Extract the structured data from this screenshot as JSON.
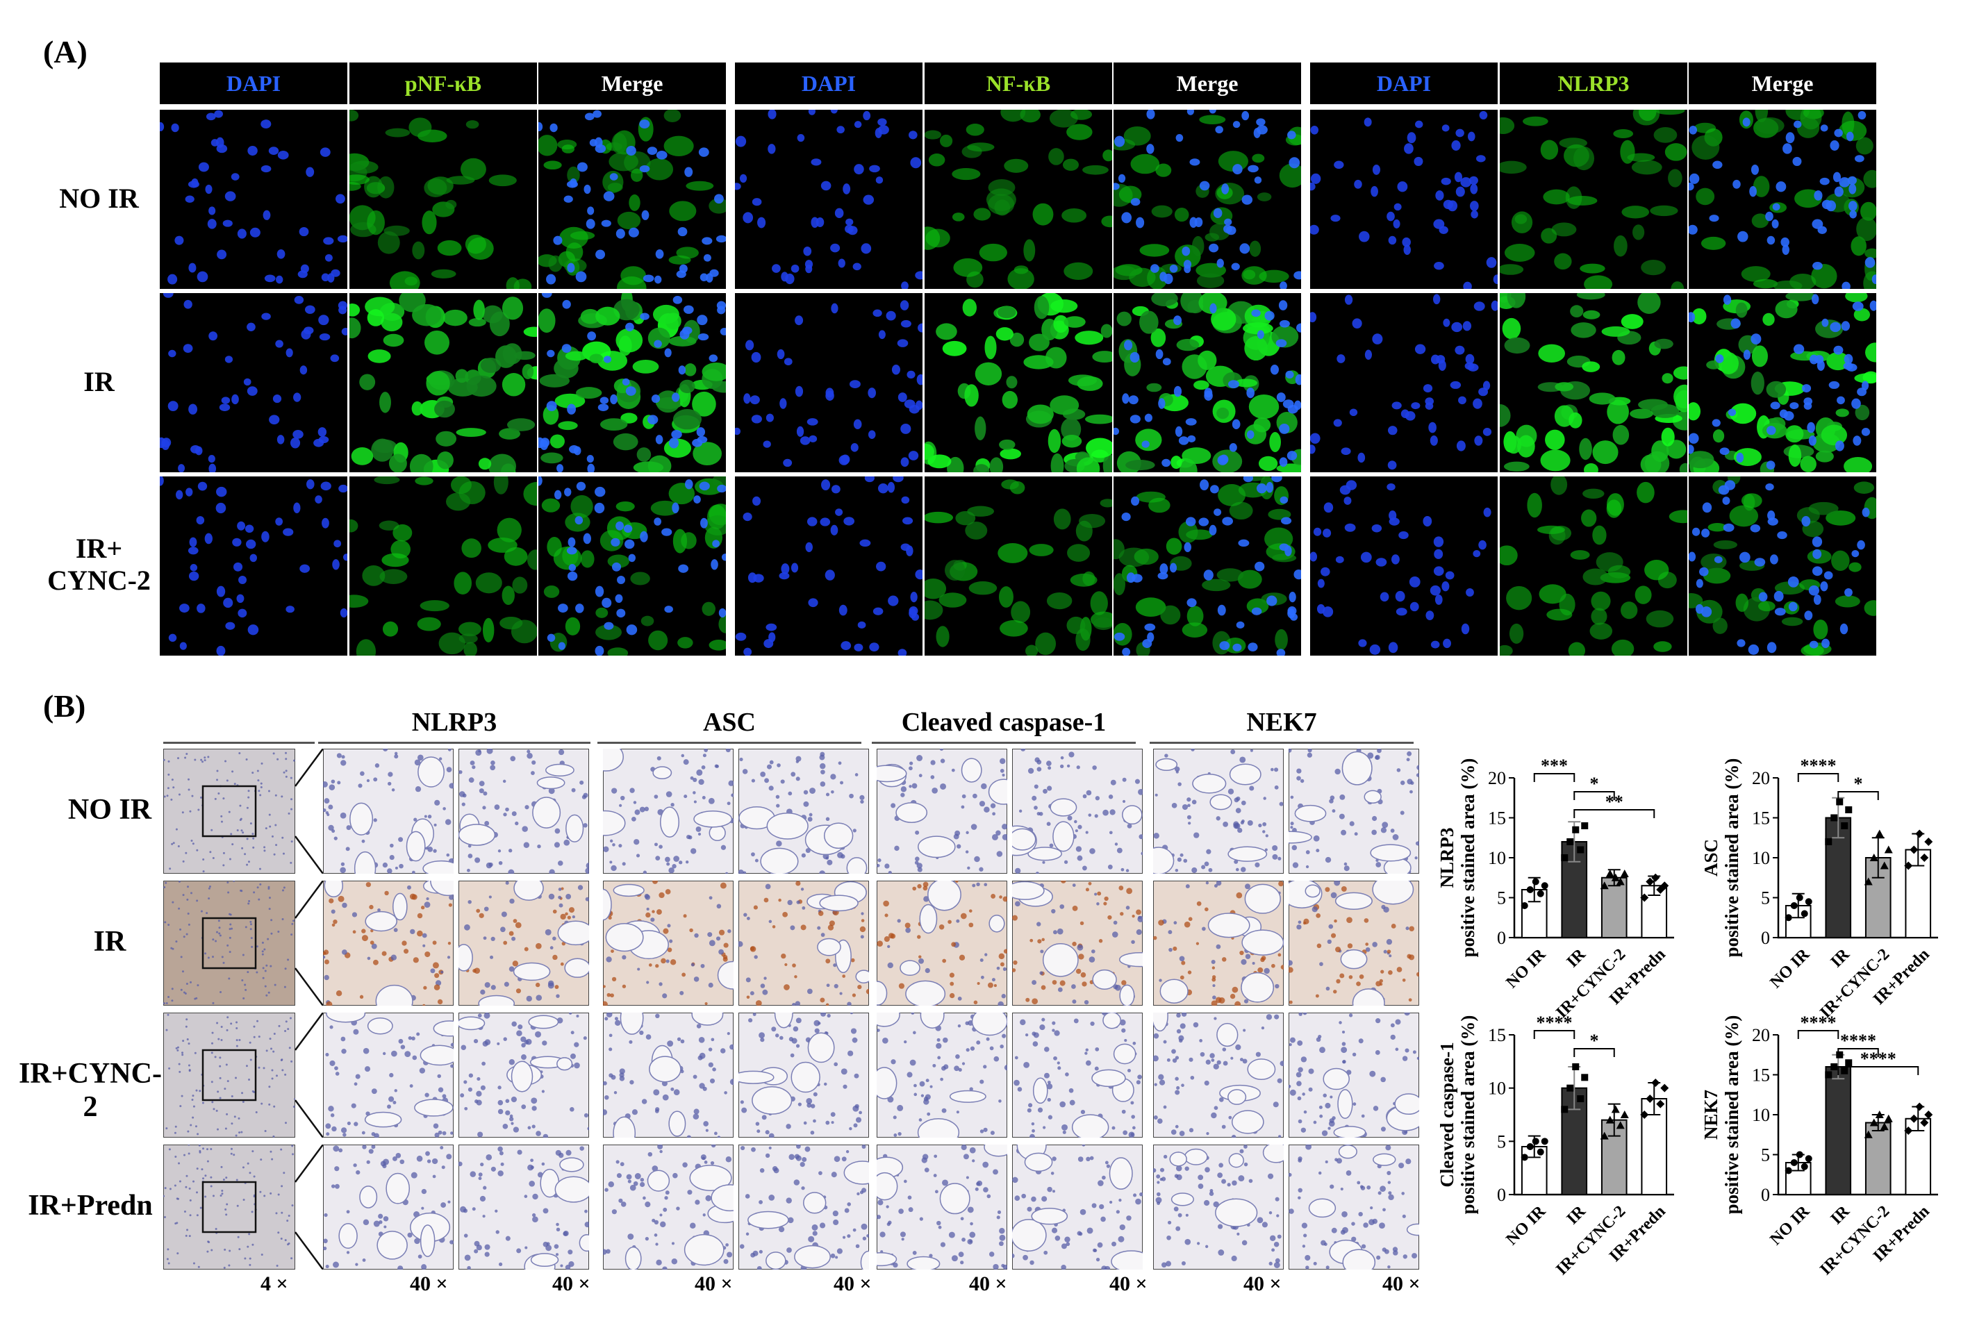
{
  "panelA": {
    "label": "(A)",
    "headers": [
      {
        "text": "DAPI",
        "color": "#2a62ff"
      },
      {
        "text": "pNF-κB",
        "color": "#9be22a"
      },
      {
        "text": "Merge",
        "color": "#ffffff"
      },
      {
        "text": "DAPI",
        "color": "#2a62ff"
      },
      {
        "text": "NF-κB",
        "color": "#9be22a"
      },
      {
        "text": "Merge",
        "color": "#ffffff"
      },
      {
        "text": "DAPI",
        "color": "#2a62ff"
      },
      {
        "text": "NLRP3",
        "color": "#9be22a"
      },
      {
        "text": "Merge",
        "color": "#ffffff"
      }
    ],
    "rows": [
      "NO IR",
      "IR",
      "IR+\nCYNC-2"
    ]
  },
  "panelB": {
    "label": "(B)",
    "stains": [
      "NLRP3",
      "ASC",
      "Cleaved caspase-1",
      "NEK7"
    ],
    "rows": [
      "NO IR",
      "IR",
      "IR+CYNC-2",
      "IR+Predn"
    ],
    "magnifications": [
      "4 ×",
      "40 ×",
      "40 ×",
      "40 ×",
      "40 ×",
      "40 ×",
      "40 ×",
      "40 ×",
      "40 ×"
    ]
  },
  "chart_data": [
    {
      "type": "bar",
      "ylabel_line1": "NLRP3",
      "ylabel_line2": "positive stained area (%)",
      "categories": [
        "NO IR",
        "IR",
        "IR+CYNC-2",
        "IR+Predn"
      ],
      "values": [
        6,
        12,
        7.5,
        6.5
      ],
      "errors": [
        1.5,
        2.5,
        1,
        1.2
      ],
      "points": [
        [
          4,
          6,
          7,
          5.5,
          6.5
        ],
        [
          10,
          12,
          13.5,
          11,
          14
        ],
        [
          6.5,
          8,
          7.5,
          7,
          8
        ],
        [
          5,
          7,
          7.5,
          6,
          6.5
        ]
      ],
      "ylim": [
        0,
        20
      ],
      "yticks": [
        0,
        5,
        10,
        15,
        20
      ],
      "significance": [
        {
          "from": 0,
          "to": 1,
          "label": "***"
        },
        {
          "from": 1,
          "to": 2,
          "label": "*"
        },
        {
          "from": 1,
          "to": 3,
          "label": "**"
        }
      ]
    },
    {
      "type": "bar",
      "ylabel_line1": "ASC",
      "ylabel_line2": "positive stained area (%)",
      "categories": [
        "NO IR",
        "IR",
        "IR+CYNC-2",
        "IR+Predn"
      ],
      "values": [
        4,
        15,
        10,
        11
      ],
      "errors": [
        1.5,
        2.5,
        2.5,
        2
      ],
      "points": [
        [
          2.5,
          4,
          5,
          3,
          4.5
        ],
        [
          12,
          15,
          17,
          14,
          16
        ],
        [
          7,
          10,
          13,
          9,
          11
        ],
        [
          9,
          11,
          13,
          10,
          12
        ]
      ],
      "ylim": [
        0,
        20
      ],
      "yticks": [
        0,
        5,
        10,
        15,
        20
      ],
      "significance": [
        {
          "from": 0,
          "to": 1,
          "label": "****"
        },
        {
          "from": 1,
          "to": 2,
          "label": "*"
        }
      ]
    },
    {
      "type": "bar",
      "ylabel_line1": "Cleaved caspase-1",
      "ylabel_line2": "positive stained area (%)",
      "categories": [
        "NO IR",
        "IR",
        "IR+CYNC-2",
        "IR+Predn"
      ],
      "values": [
        4.5,
        10,
        7,
        9
      ],
      "errors": [
        1,
        2,
        1.5,
        1.5
      ],
      "points": [
        [
          3.5,
          4.5,
          5,
          4,
          5
        ],
        [
          8,
          10,
          12,
          9,
          11
        ],
        [
          5.5,
          7,
          8,
          6.5,
          7.5
        ],
        [
          7.5,
          9,
          10.5,
          8.5,
          10
        ]
      ],
      "ylim": [
        0,
        15
      ],
      "yticks": [
        0,
        5,
        10,
        15
      ],
      "significance": [
        {
          "from": 0,
          "to": 1,
          "label": "****"
        },
        {
          "from": 1,
          "to": 2,
          "label": "*"
        }
      ]
    },
    {
      "type": "bar",
      "ylabel_line1": "NEK7",
      "ylabel_line2": "positive stained area (%)",
      "categories": [
        "NO IR",
        "IR",
        "IR+CYNC-2",
        "IR+Predn"
      ],
      "values": [
        4,
        16,
        9,
        9.5
      ],
      "errors": [
        1,
        1.5,
        1,
        1.5
      ],
      "points": [
        [
          3,
          4,
          5,
          3.5,
          4.5
        ],
        [
          15,
          16,
          17.5,
          15.5,
          16.5
        ],
        [
          7.5,
          9,
          10,
          8.5,
          9.5
        ],
        [
          8,
          9.5,
          11,
          9,
          10
        ]
      ],
      "ylim": [
        0,
        20
      ],
      "yticks": [
        0,
        5,
        10,
        15,
        20
      ],
      "significance": [
        {
          "from": 0,
          "to": 1,
          "label": "****"
        },
        {
          "from": 1,
          "to": 2,
          "label": "****"
        },
        {
          "from": 1,
          "to": 3,
          "label": "****"
        }
      ]
    }
  ]
}
